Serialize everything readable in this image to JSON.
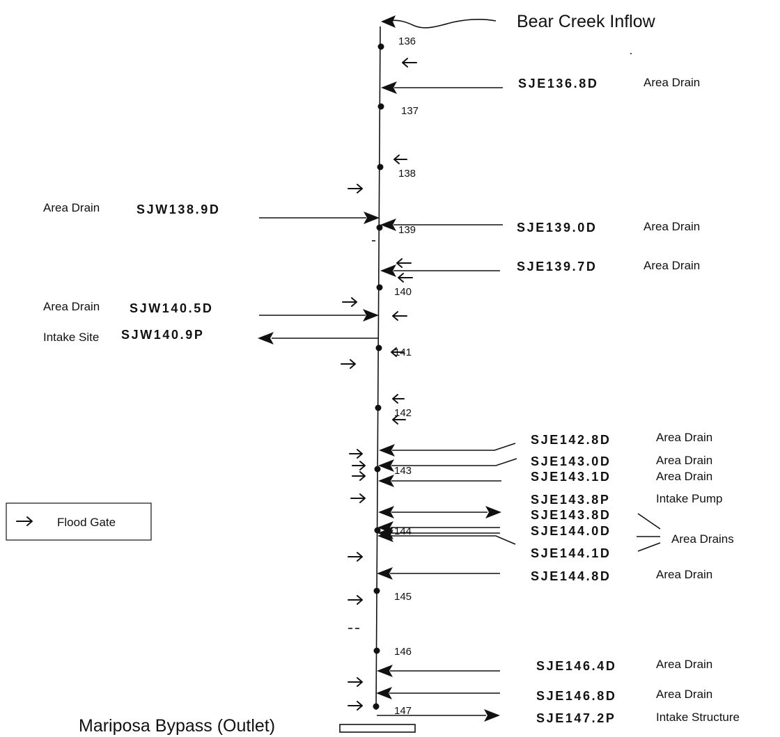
{
  "top_inflow": "Bear Creek Inflow",
  "outlet": "Mariposa Bypass (Outlet)",
  "legend": {
    "label": "Flood Gate"
  },
  "river_miles": [
    "136",
    "137",
    "138",
    "139",
    "140",
    "141",
    "142",
    "143",
    "144",
    "145",
    "146",
    "147"
  ],
  "east": [
    {
      "code": "SJE136.8D",
      "desc": "Area Drain"
    },
    {
      "code": "SJE139.0D",
      "desc": "Area Drain"
    },
    {
      "code": "SJE139.7D",
      "desc": "Area Drain"
    },
    {
      "code": "SJE142.8D",
      "desc": "Area Drain"
    },
    {
      "code": "SJE143.0D",
      "desc": "Area Drain"
    },
    {
      "code": "SJE143.1D",
      "desc": "Area Drain"
    },
    {
      "code": "SJE143.8P",
      "desc": "Intake Pump"
    },
    {
      "code": "SJE143.8D",
      "desc": ""
    },
    {
      "code": "SJE144.0D",
      "desc": ""
    },
    {
      "code": "SJE144.1D",
      "desc": ""
    },
    {
      "code": "SJE144.8D",
      "desc": "Area Drain"
    },
    {
      "code": "SJE146.4D",
      "desc": "Area Drain"
    },
    {
      "code": "SJE146.8D",
      "desc": "Area Drain"
    },
    {
      "code": "SJE147.2P",
      "desc": "Intake Structure"
    }
  ],
  "east_group_label": "Area Drains",
  "west": [
    {
      "code": "SJW138.9D",
      "desc": "Area Drain"
    },
    {
      "code": "SJW140.5D",
      "desc": "Area Drain"
    },
    {
      "code": "SJW140.9P",
      "desc": "Intake Site"
    }
  ]
}
